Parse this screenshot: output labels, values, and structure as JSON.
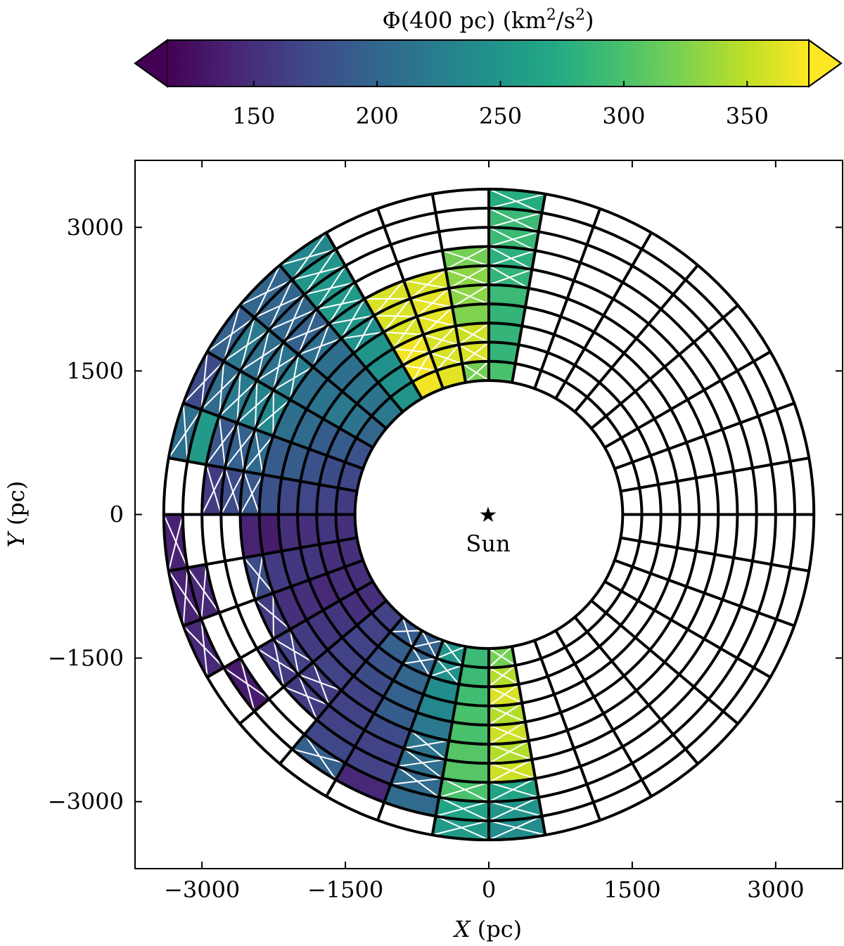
{
  "chart_data": {
    "type": "heatmap",
    "subtype": "polar-annulus",
    "colorbar": {
      "label_prefix": "Φ(400 pc) (km",
      "label_sup1": "2",
      "label_mid": "/s",
      "label_sup2": "2",
      "label_suffix": ")",
      "vmin": 115,
      "vmax": 375,
      "ticks": [
        "150",
        "200",
        "250",
        "300",
        "350"
      ],
      "tick_values": [
        150,
        200,
        250,
        300,
        350
      ],
      "extend": "both",
      "colormap": "viridis"
    },
    "xlabel_var": "X",
    "xlabel_unit": " (pc)",
    "ylabel_var": "Y",
    "ylabel_unit": " (pc)",
    "xlim": [
      -3700,
      3700
    ],
    "ylim": [
      -3700,
      3700
    ],
    "xticks": [
      -3000,
      -1500,
      0,
      1500,
      3000
    ],
    "xtick_labels": [
      "−3000",
      "−1500",
      "0",
      "1500",
      "3000"
    ],
    "yticks": [
      -3000,
      -1500,
      0,
      1500,
      3000
    ],
    "ytick_labels": [
      "−3000",
      "−1500",
      "0",
      "1500",
      "3000"
    ],
    "grid": false,
    "annulus": {
      "r_inner": 1400,
      "r_outer": 3400,
      "n_rings": 10,
      "n_sectors": 36,
      "sector_width_deg": 10
    },
    "marker": {
      "x": 0,
      "y": 0,
      "symbol": "★",
      "label": "Sun"
    },
    "cells_note_fields": [
      "sector",
      "ring",
      "value",
      "hatched"
    ],
    "cells": [
      [
        8,
        0,
        300,
        false
      ],
      [
        8,
        1,
        285,
        false
      ],
      [
        8,
        2,
        285,
        false
      ],
      [
        8,
        3,
        285,
        false
      ],
      [
        8,
        4,
        290,
        false
      ],
      [
        8,
        5,
        285,
        true
      ],
      [
        8,
        6,
        280,
        true
      ],
      [
        8,
        7,
        290,
        true
      ],
      [
        8,
        8,
        290,
        true
      ],
      [
        8,
        9,
        275,
        true
      ],
      [
        9,
        0,
        320,
        true
      ],
      [
        9,
        1,
        360,
        true
      ],
      [
        9,
        2,
        355,
        true
      ],
      [
        9,
        3,
        325,
        false
      ],
      [
        9,
        4,
        330,
        true
      ],
      [
        9,
        5,
        330,
        true
      ],
      [
        9,
        6,
        320,
        true
      ],
      [
        10,
        0,
        365,
        false
      ],
      [
        10,
        1,
        360,
        true
      ],
      [
        10,
        2,
        360,
        true
      ],
      [
        10,
        3,
        365,
        true
      ],
      [
        10,
        4,
        365,
        true
      ],
      [
        10,
        5,
        360,
        true
      ],
      [
        11,
        0,
        370,
        false
      ],
      [
        11,
        1,
        370,
        true
      ],
      [
        11,
        2,
        370,
        true
      ],
      [
        11,
        3,
        360,
        true
      ],
      [
        11,
        4,
        360,
        true
      ],
      [
        11,
        5,
        360,
        true
      ],
      [
        12,
        0,
        250,
        false
      ],
      [
        12,
        1,
        245,
        false
      ],
      [
        12,
        2,
        245,
        false
      ],
      [
        12,
        3,
        250,
        false
      ],
      [
        12,
        4,
        245,
        true
      ],
      [
        12,
        5,
        250,
        true
      ],
      [
        12,
        6,
        255,
        true
      ],
      [
        12,
        7,
        250,
        true
      ],
      [
        12,
        8,
        250,
        true
      ],
      [
        12,
        9,
        235,
        true
      ],
      [
        13,
        0,
        220,
        false
      ],
      [
        13,
        1,
        215,
        false
      ],
      [
        13,
        2,
        215,
        false
      ],
      [
        13,
        3,
        210,
        false
      ],
      [
        13,
        4,
        210,
        false
      ],
      [
        13,
        5,
        210,
        true
      ],
      [
        13,
        6,
        195,
        true
      ],
      [
        13,
        7,
        200,
        true
      ],
      [
        13,
        8,
        200,
        true
      ],
      [
        13,
        9,
        200,
        true
      ],
      [
        14,
        0,
        200,
        false
      ],
      [
        14,
        1,
        215,
        false
      ],
      [
        14,
        2,
        220,
        false
      ],
      [
        14,
        3,
        215,
        false
      ],
      [
        14,
        4,
        210,
        false
      ],
      [
        14,
        5,
        225,
        true
      ],
      [
        14,
        6,
        215,
        true
      ],
      [
        14,
        7,
        210,
        true
      ],
      [
        14,
        8,
        220,
        true
      ],
      [
        14,
        9,
        195,
        true
      ],
      [
        15,
        0,
        180,
        false
      ],
      [
        15,
        1,
        190,
        false
      ],
      [
        15,
        2,
        190,
        false
      ],
      [
        15,
        3,
        205,
        false
      ],
      [
        15,
        4,
        210,
        false
      ],
      [
        15,
        5,
        235,
        true
      ],
      [
        15,
        6,
        230,
        true
      ],
      [
        15,
        7,
        220,
        true
      ],
      [
        15,
        8,
        205,
        true
      ],
      [
        15,
        9,
        175,
        true
      ],
      [
        16,
        0,
        170,
        false
      ],
      [
        16,
        1,
        175,
        false
      ],
      [
        16,
        2,
        180,
        false
      ],
      [
        16,
        3,
        190,
        false
      ],
      [
        16,
        4,
        190,
        false
      ],
      [
        16,
        5,
        205,
        true
      ],
      [
        16,
        6,
        195,
        true
      ],
      [
        16,
        7,
        185,
        true
      ],
      [
        16,
        8,
        255,
        false
      ],
      [
        16,
        9,
        210,
        true
      ],
      [
        17,
        0,
        160,
        false
      ],
      [
        17,
        1,
        165,
        false
      ],
      [
        17,
        2,
        170,
        false
      ],
      [
        17,
        3,
        170,
        false
      ],
      [
        17,
        4,
        180,
        false
      ],
      [
        17,
        5,
        185,
        true
      ],
      [
        17,
        6,
        175,
        true
      ],
      [
        17,
        7,
        160,
        true
      ],
      [
        18,
        0,
        150,
        false
      ],
      [
        18,
        1,
        155,
        false
      ],
      [
        18,
        2,
        150,
        false
      ],
      [
        18,
        3,
        150,
        false
      ],
      [
        18,
        4,
        135,
        false
      ],
      [
        18,
        5,
        140,
        false
      ],
      [
        18,
        9,
        140,
        true
      ],
      [
        19,
        0,
        150,
        false
      ],
      [
        19,
        1,
        150,
        false
      ],
      [
        19,
        2,
        155,
        false
      ],
      [
        19,
        3,
        155,
        false
      ],
      [
        19,
        4,
        160,
        false
      ],
      [
        19,
        5,
        175,
        true
      ],
      [
        19,
        8,
        145,
        true
      ],
      [
        19,
        9,
        140,
        true
      ],
      [
        20,
        0,
        150,
        false
      ],
      [
        20,
        1,
        150,
        false
      ],
      [
        20,
        2,
        145,
        false
      ],
      [
        20,
        3,
        150,
        false
      ],
      [
        20,
        4,
        150,
        false
      ],
      [
        20,
        5,
        160,
        true
      ],
      [
        20,
        9,
        145,
        true
      ],
      [
        21,
        0,
        150,
        false
      ],
      [
        21,
        1,
        150,
        false
      ],
      [
        21,
        2,
        155,
        false
      ],
      [
        21,
        3,
        155,
        false
      ],
      [
        21,
        4,
        160,
        false
      ],
      [
        21,
        5,
        165,
        true
      ],
      [
        21,
        6,
        160,
        true
      ],
      [
        21,
        8,
        135,
        true
      ],
      [
        22,
        0,
        165,
        false
      ],
      [
        22,
        1,
        165,
        false
      ],
      [
        22,
        2,
        165,
        false
      ],
      [
        22,
        3,
        165,
        false
      ],
      [
        22,
        4,
        165,
        false
      ],
      [
        22,
        5,
        160,
        true
      ],
      [
        22,
        6,
        160,
        true
      ],
      [
        23,
        0,
        190,
        true
      ],
      [
        23,
        1,
        195,
        false
      ],
      [
        23,
        2,
        180,
        false
      ],
      [
        23,
        3,
        175,
        false
      ],
      [
        23,
        4,
        165,
        false
      ],
      [
        23,
        5,
        165,
        false
      ],
      [
        23,
        6,
        165,
        false
      ],
      [
        23,
        7,
        170,
        false
      ],
      [
        23,
        8,
        195,
        true
      ],
      [
        24,
        0,
        195,
        true
      ],
      [
        24,
        1,
        200,
        true
      ],
      [
        24,
        2,
        200,
        false
      ],
      [
        24,
        3,
        195,
        false
      ],
      [
        24,
        4,
        190,
        false
      ],
      [
        24,
        5,
        175,
        false
      ],
      [
        24,
        6,
        165,
        false
      ],
      [
        24,
        7,
        165,
        false
      ],
      [
        24,
        8,
        145,
        false
      ],
      [
        25,
        0,
        250,
        true
      ],
      [
        25,
        1,
        245,
        true
      ],
      [
        25,
        2,
        240,
        false
      ],
      [
        25,
        3,
        235,
        false
      ],
      [
        25,
        4,
        220,
        false
      ],
      [
        25,
        5,
        215,
        true
      ],
      [
        25,
        6,
        210,
        true
      ],
      [
        25,
        7,
        205,
        true
      ],
      [
        25,
        8,
        205,
        false
      ],
      [
        26,
        0,
        290,
        false
      ],
      [
        26,
        1,
        290,
        false
      ],
      [
        26,
        2,
        295,
        false
      ],
      [
        26,
        3,
        300,
        false
      ],
      [
        26,
        4,
        300,
        false
      ],
      [
        26,
        5,
        305,
        false
      ],
      [
        26,
        6,
        305,
        false
      ],
      [
        26,
        7,
        300,
        true
      ],
      [
        26,
        8,
        265,
        true
      ],
      [
        26,
        9,
        255,
        true
      ],
      [
        27,
        0,
        320,
        true
      ],
      [
        27,
        1,
        345,
        true
      ],
      [
        27,
        2,
        360,
        true
      ],
      [
        27,
        3,
        345,
        true
      ],
      [
        27,
        4,
        355,
        true
      ],
      [
        27,
        5,
        345,
        true
      ],
      [
        27,
        6,
        355,
        true
      ],
      [
        27,
        7,
        265,
        true
      ],
      [
        27,
        8,
        250,
        true
      ],
      [
        27,
        9,
        240,
        true
      ]
    ]
  }
}
